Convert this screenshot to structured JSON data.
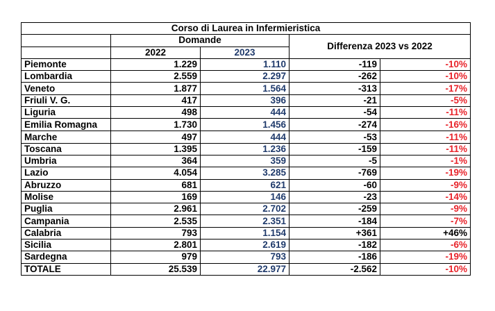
{
  "title": "Corso di Laurea in Infermieristica",
  "group_header": "Domande",
  "col_2022": "2022",
  "col_2023": "2023",
  "diff_header": "Differenza 2023 vs 2022",
  "colors": {
    "text": "#000000",
    "year_2023": "#1f3a6b",
    "negative_pct": "#e8242b"
  },
  "rows": [
    {
      "region": "Piemonte",
      "v2022": "1.229",
      "v2023": "1.110",
      "diff": "-119",
      "pct": "-10%"
    },
    {
      "region": "Lombardia",
      "v2022": "2.559",
      "v2023": "2.297",
      "diff": "-262",
      "pct": "-10%"
    },
    {
      "region": "Veneto",
      "v2022": "1.877",
      "v2023": "1.564",
      "diff": "-313",
      "pct": "-17%"
    },
    {
      "region": "Friuli V. G.",
      "v2022": "417",
      "v2023": "396",
      "diff": "-21",
      "pct": "-5%"
    },
    {
      "region": "Liguria",
      "v2022": "498",
      "v2023": "444",
      "diff": "-54",
      "pct": "-11%"
    },
    {
      "region": "Emilia Romagna",
      "v2022": "1.730",
      "v2023": "1.456",
      "diff": "-274",
      "pct": "-16%"
    },
    {
      "region": "Marche",
      "v2022": "497",
      "v2023": "444",
      "diff": "-53",
      "pct": "-11%"
    },
    {
      "region": "Toscana",
      "v2022": "1.395",
      "v2023": "1.236",
      "diff": "-159",
      "pct": "-11%"
    },
    {
      "region": "Umbria",
      "v2022": "364",
      "v2023": "359",
      "diff": "-5",
      "pct": "-1%"
    },
    {
      "region": "Lazio",
      "v2022": "4.054",
      "v2023": "3.285",
      "diff": "-769",
      "pct": "-19%"
    },
    {
      "region": "Abruzzo",
      "v2022": "681",
      "v2023": "621",
      "diff": "-60",
      "pct": "-9%"
    },
    {
      "region": "Molise",
      "v2022": "169",
      "v2023": "146",
      "diff": "-23",
      "pct": "-14%"
    },
    {
      "region": "Puglia",
      "v2022": "2.961",
      "v2023": "2.702",
      "diff": "-259",
      "pct": "-9%"
    },
    {
      "region": "Campania",
      "v2022": "2.535",
      "v2023": "2.351",
      "diff": "-184",
      "pct": "-7%"
    },
    {
      "region": "Calabria",
      "v2022": "793",
      "v2023": "1.154",
      "diff": "+361",
      "pct": "+46%"
    },
    {
      "region": "Sicilia",
      "v2022": "2.801",
      "v2023": "2.619",
      "diff": "-182",
      "pct": "-6%"
    },
    {
      "region": "Sardegna",
      "v2022": "979",
      "v2023": "793",
      "diff": "-186",
      "pct": "-19%"
    },
    {
      "region": "TOTALE",
      "v2022": "25.539",
      "v2023": "22.977",
      "diff": "-2.562",
      "pct": "-10%"
    }
  ]
}
